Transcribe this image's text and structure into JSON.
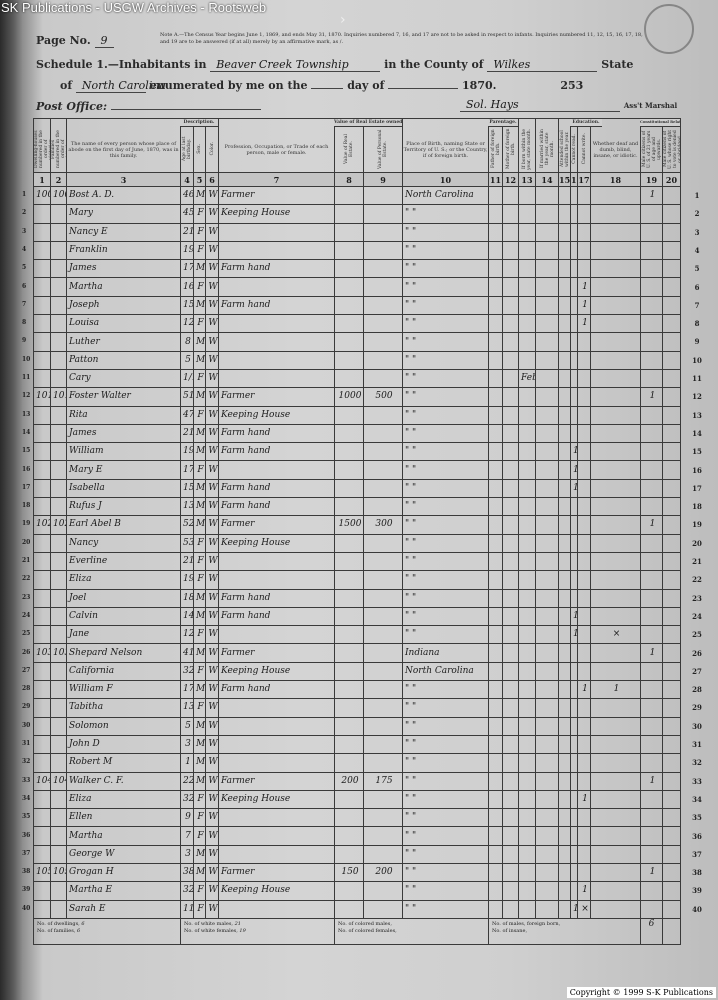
{
  "watermark": "SK Publications - USGW Archives - Rootsweb",
  "copyright": "Copyright © 1999 S-K Publications",
  "header": {
    "page_label": "Page No.",
    "page_no": "9",
    "note": "Note A.—The Census Year begins June 1, 1869, and ends May 31, 1870. Inquiries numbered 7, 16, and 17 are not to be asked in respect to infants. Inquiries numbered 11, 12, 15, 16, 17, 18, and 19 are to be answered (if at all) merely by an affirmative mark, as /.",
    "schedule_label": "Schedule 1.—Inhabitants in",
    "township": "Beaver Creek Township",
    "county_label": "in the County of",
    "county": "Wilkes",
    "state_label": "State",
    "of_label": "of",
    "state": "North Carolina",
    "enumerated_label": "enumerated by me on the",
    "day_label": "day of",
    "year": "1870.",
    "sheet_no": "253",
    "post_office_label": "Post Office:",
    "marshal": "Sol. Hays",
    "marshal_label": "Ass't Marshal"
  },
  "columns": [
    {
      "num": "1",
      "label": "Dwelling-houses numbered in the order of visitation."
    },
    {
      "num": "2",
      "label": "Families numbered in the order of visitation."
    },
    {
      "num": "3",
      "label": "The name of every person whose place of abode on the first day of June, 1870, was in this family."
    },
    {
      "num": "4",
      "label": "Age at last birthday."
    },
    {
      "num": "5",
      "label": "Sex."
    },
    {
      "num": "6",
      "label": "Color."
    },
    {
      "num": "7",
      "label": "Profession, Occupation, or Trade of each person, male or female."
    },
    {
      "num": "8",
      "label": "Value of Real Estate."
    },
    {
      "num": "9",
      "label": "Value of Personal Estate."
    },
    {
      "num": "10",
      "label": "Place of Birth, naming State or Territory of U. S.; or the Country, if of foreign birth."
    },
    {
      "num": "11",
      "label": "Father of foreign birth."
    },
    {
      "num": "12",
      "label": "Mother of foreign birth."
    },
    {
      "num": "13",
      "label": "If born within the year, state month."
    },
    {
      "num": "14",
      "label": "If married within the year, state month."
    },
    {
      "num": "15",
      "label": "Attended school within the year."
    },
    {
      "num": "16",
      "label": "Cannot read."
    },
    {
      "num": "17",
      "label": "Cannot write."
    },
    {
      "num": "18",
      "label": "Whether deaf and dumb, blind, insane, or idiotic."
    },
    {
      "num": "19",
      "label": "Male citizens of U. S. of 21 years of age and upwards."
    },
    {
      "num": "20",
      "label": "Male citizens of U. S. whose right to vote is denied or abridged."
    }
  ],
  "group_headers": {
    "description": "Description.",
    "value": "Value of Real Estate owned.",
    "parentage": "Parentage.",
    "education": "Education.",
    "constitutional": "Constitutional Relations."
  },
  "rows": [
    [
      "100",
      "100",
      "Bost A. D.",
      "46",
      "M",
      "W",
      "Farmer",
      "",
      "",
      "North Carolina",
      "",
      "",
      "",
      "",
      "",
      "",
      "",
      "",
      "1",
      ""
    ],
    [
      "",
      "",
      "Mary",
      "45",
      "F",
      "W",
      "Keeping House",
      "",
      "",
      "\"  \"",
      "",
      "",
      "",
      "",
      "",
      "",
      "",
      "",
      "",
      ""
    ],
    [
      "",
      "",
      "Nancy E",
      "21",
      "F",
      "W",
      "",
      "",
      "",
      "\"  \"",
      "",
      "",
      "",
      "",
      "",
      "",
      "",
      "",
      "",
      ""
    ],
    [
      "",
      "",
      "Franklin",
      "19",
      "F",
      "W",
      "",
      "",
      "",
      "\"  \"",
      "",
      "",
      "",
      "",
      "",
      "",
      "",
      "",
      "",
      ""
    ],
    [
      "",
      "",
      "James",
      "17",
      "M",
      "W",
      "Farm hand",
      "",
      "",
      "\"  \"",
      "",
      "",
      "",
      "",
      "",
      "",
      "",
      "",
      "",
      ""
    ],
    [
      "",
      "",
      "Martha",
      "16",
      "F",
      "W",
      "",
      "",
      "",
      "\"  \"",
      "",
      "",
      "",
      "",
      "",
      "",
      "1",
      "",
      "",
      ""
    ],
    [
      "",
      "",
      "Joseph",
      "15",
      "M",
      "W",
      "Farm hand",
      "",
      "",
      "\"  \"",
      "",
      "",
      "",
      "",
      "",
      "",
      "1",
      "",
      "",
      ""
    ],
    [
      "",
      "",
      "Louisa",
      "12",
      "F",
      "W",
      "",
      "",
      "",
      "\"  \"",
      "",
      "",
      "",
      "",
      "",
      "",
      "1",
      "",
      "",
      ""
    ],
    [
      "",
      "",
      "Luther",
      "8",
      "M",
      "W",
      "",
      "",
      "",
      "\"  \"",
      "",
      "",
      "",
      "",
      "",
      "",
      "",
      "",
      "",
      ""
    ],
    [
      "",
      "",
      "Patton",
      "5",
      "M",
      "W",
      "",
      "",
      "",
      "\"  \"",
      "",
      "",
      "",
      "",
      "",
      "",
      "",
      "",
      "",
      ""
    ],
    [
      "",
      "",
      "Cary",
      "1/12",
      "F",
      "W",
      "",
      "",
      "",
      "\"  \"",
      "",
      "",
      "Feb",
      "",
      "",
      "",
      "",
      "",
      "",
      ""
    ],
    [
      "101",
      "101",
      "Foster Walter",
      "51",
      "M",
      "W",
      "Farmer",
      "1000",
      "500",
      "\"  \"",
      "",
      "",
      "",
      "",
      "",
      "",
      "",
      "",
      "1",
      ""
    ],
    [
      "",
      "",
      "Rita",
      "47",
      "F",
      "W",
      "Keeping House",
      "",
      "",
      "\"  \"",
      "",
      "",
      "",
      "",
      "",
      "",
      "",
      "",
      "",
      ""
    ],
    [
      "",
      "",
      "James",
      "21",
      "M",
      "W",
      "Farm hand",
      "",
      "",
      "\"  \"",
      "",
      "",
      "",
      "",
      "",
      "",
      "",
      "",
      "",
      ""
    ],
    [
      "",
      "",
      "William",
      "19",
      "M",
      "W",
      "Farm hand",
      "",
      "",
      "\"  \"",
      "",
      "",
      "",
      "",
      "",
      "1",
      "",
      "",
      "",
      ""
    ],
    [
      "",
      "",
      "Mary E",
      "17",
      "F",
      "W",
      "",
      "",
      "",
      "\"  \"",
      "",
      "",
      "",
      "",
      "",
      "1",
      "",
      "",
      "",
      ""
    ],
    [
      "",
      "",
      "Isabella",
      "15",
      "M",
      "W",
      "Farm hand",
      "",
      "",
      "\"  \"",
      "",
      "",
      "",
      "",
      "",
      "1",
      "",
      "",
      "",
      ""
    ],
    [
      "",
      "",
      "Rufus J",
      "13",
      "M",
      "W",
      "Farm hand",
      "",
      "",
      "\"  \"",
      "",
      "",
      "",
      "",
      "",
      "",
      "",
      "",
      "",
      ""
    ],
    [
      "102",
      "102",
      "Earl Abel B",
      "52",
      "M",
      "W",
      "Farmer",
      "1500",
      "300",
      "\"  \"",
      "",
      "",
      "",
      "",
      "",
      "",
      "",
      "",
      "1",
      ""
    ],
    [
      "",
      "",
      "Nancy",
      "53",
      "F",
      "W",
      "Keeping House",
      "",
      "",
      "\"  \"",
      "",
      "",
      "",
      "",
      "",
      "",
      "",
      "",
      "",
      ""
    ],
    [
      "",
      "",
      "Everline",
      "21",
      "F",
      "W",
      "",
      "",
      "",
      "\"  \"",
      "",
      "",
      "",
      "",
      "",
      "",
      "",
      "",
      "",
      ""
    ],
    [
      "",
      "",
      "Eliza",
      "19",
      "F",
      "W",
      "",
      "",
      "",
      "\"  \"",
      "",
      "",
      "",
      "",
      "",
      "",
      "",
      "",
      "",
      ""
    ],
    [
      "",
      "",
      "Joel",
      "18",
      "M",
      "W",
      "Farm hand",
      "",
      "",
      "\"  \"",
      "",
      "",
      "",
      "",
      "",
      "",
      "",
      "",
      "",
      ""
    ],
    [
      "",
      "",
      "Calvin",
      "14",
      "M",
      "W",
      "Farm hand",
      "",
      "",
      "\"  \"",
      "",
      "",
      "",
      "",
      "",
      "1",
      "",
      "",
      "",
      ""
    ],
    [
      "",
      "",
      "Jane",
      "12",
      "F",
      "W",
      "",
      "",
      "",
      "\"  \"",
      "",
      "",
      "",
      "",
      "",
      "1",
      "",
      "×",
      "",
      ""
    ],
    [
      "103",
      "103",
      "Shepard Nelson",
      "41",
      "M",
      "W",
      "Farmer",
      "",
      "",
      "Indiana",
      "",
      "",
      "",
      "",
      "",
      "",
      "",
      "",
      "1",
      ""
    ],
    [
      "",
      "",
      "California",
      "32",
      "F",
      "W",
      "Keeping House",
      "",
      "",
      "North Carolina",
      "",
      "",
      "",
      "",
      "",
      "",
      "",
      "",
      "",
      ""
    ],
    [
      "",
      "",
      "William F",
      "17",
      "M",
      "W",
      "Farm hand",
      "",
      "",
      "\"  \"",
      "",
      "",
      "",
      "",
      "",
      "",
      "1",
      "1",
      "",
      ""
    ],
    [
      "",
      "",
      "Tabitha",
      "13",
      "F",
      "W",
      "",
      "",
      "",
      "\"  \"",
      "",
      "",
      "",
      "",
      "",
      "",
      "",
      "",
      "",
      ""
    ],
    [
      "",
      "",
      "Solomon",
      "5",
      "M",
      "W",
      "",
      "",
      "",
      "\"  \"",
      "",
      "",
      "",
      "",
      "",
      "",
      "",
      "",
      "",
      ""
    ],
    [
      "",
      "",
      "John D",
      "3",
      "M",
      "W",
      "",
      "",
      "",
      "\"  \"",
      "",
      "",
      "",
      "",
      "",
      "",
      "",
      "",
      "",
      ""
    ],
    [
      "",
      "",
      "Robert M",
      "1",
      "M",
      "W",
      "",
      "",
      "",
      "\"  \"",
      "",
      "",
      "",
      "",
      "",
      "",
      "",
      "",
      "",
      ""
    ],
    [
      "104",
      "104",
      "Walker C. F.",
      "22",
      "M",
      "W",
      "Farmer",
      "200",
      "175",
      "\"  \"",
      "",
      "",
      "",
      "",
      "",
      "",
      "",
      "",
      "1",
      ""
    ],
    [
      "",
      "",
      "Eliza",
      "32",
      "F",
      "W",
      "Keeping House",
      "",
      "",
      "\"  \"",
      "",
      "",
      "",
      "",
      "",
      "",
      "1",
      "",
      "",
      ""
    ],
    [
      "",
      "",
      "Ellen",
      "9",
      "F",
      "W",
      "",
      "",
      "",
      "\"  \"",
      "",
      "",
      "",
      "",
      "",
      "",
      "",
      "",
      "",
      ""
    ],
    [
      "",
      "",
      "Martha",
      "7",
      "F",
      "W",
      "",
      "",
      "",
      "\"  \"",
      "",
      "",
      "",
      "",
      "",
      "",
      "",
      "",
      "",
      ""
    ],
    [
      "",
      "",
      "George W",
      "3",
      "M",
      "W",
      "",
      "",
      "",
      "\"  \"",
      "",
      "",
      "",
      "",
      "",
      "",
      "",
      "",
      "",
      ""
    ],
    [
      "105",
      "105",
      "Grogan H",
      "38",
      "M",
      "W",
      "Farmer",
      "150",
      "200",
      "\"  \"",
      "",
      "",
      "",
      "",
      "",
      "",
      "",
      "",
      "1",
      ""
    ],
    [
      "",
      "",
      "Martha E",
      "32",
      "F",
      "W",
      "Keeping House",
      "",
      "",
      "\"  \"",
      "",
      "",
      "",
      "",
      "",
      "",
      "1",
      "",
      "",
      ""
    ],
    [
      "",
      "",
      "Sarah E",
      "11",
      "F",
      "W",
      "",
      "",
      "",
      "\"  \"",
      "",
      "",
      "",
      "",
      "",
      "1",
      "×",
      "",
      "",
      ""
    ]
  ],
  "footer": {
    "dwellings_label": "No. of dwellings,",
    "dwellings": "6",
    "white_females_label": "No. of white females,",
    "white_females": "19",
    "white_males_label": "No. of white males,",
    "white_males": "21",
    "colored_males_label": "No. of colored males,",
    "colored_females_label": "No. of colored females,",
    "families_label": "No. of families,",
    "families": "6",
    "foreign_label": "No. of males, foreign born,",
    "blind_label": "No. of insane,",
    "col19_total": "6"
  }
}
